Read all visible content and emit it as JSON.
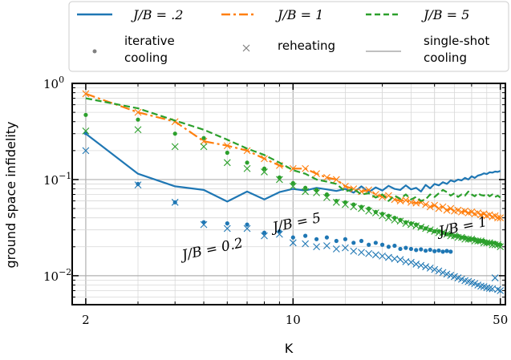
{
  "chart_data": {
    "type": "line",
    "xlabel": "K",
    "ylabel": "ground space infidelity",
    "x_scale": "log",
    "y_scale": "log",
    "xlim": [
      1.8,
      52
    ],
    "ylim": [
      0.005,
      1.0
    ],
    "grid": true,
    "x_ticks": [
      {
        "v": 2,
        "label": "2"
      },
      {
        "v": 10,
        "label": "10"
      },
      {
        "v": 50,
        "label": "50"
      }
    ],
    "y_ticks": [
      {
        "v": 1,
        "label": "10",
        "exp": "0"
      },
      {
        "v": 0.1,
        "label": "10",
        "exp": "−1"
      },
      {
        "v": 0.01,
        "label": "10",
        "exp": "−2"
      }
    ],
    "legend": {
      "position": "top",
      "entries": [
        {
          "label": "J/B = .2",
          "style": "solid",
          "color": "#1f77b4"
        },
        {
          "label": "J/B = 1",
          "style": "dashdot",
          "color": "#ff7f0e"
        },
        {
          "label": "J/B = 5",
          "style": "dashed",
          "color": "#2ca02c"
        },
        {
          "label": "iterative cooling",
          "line1": "iterative",
          "line2": "cooling",
          "style": "dot",
          "color": "#808080"
        },
        {
          "label": "reheating",
          "style": "x",
          "color": "#808080"
        },
        {
          "label": "single-shot cooling",
          "line1": "single-shot",
          "line2": "cooling",
          "style": "thin",
          "color": "#808080"
        }
      ]
    },
    "annotations": [
      {
        "text": "J/B = 5",
        "x": 13.5,
        "y": 0.048
      },
      {
        "text": "J/B = 0.2",
        "x": 4.6,
        "y": 0.0195
      },
      {
        "text": "J/B = 1",
        "x": 39,
        "y": 0.048
      }
    ],
    "series": [
      {
        "name": "J/B = .2",
        "color": "#1f77b4",
        "style": "solid",
        "single_shot": {
          "x": [
            2,
            3,
            4,
            5,
            6,
            7,
            8,
            9,
            10,
            11,
            12,
            13,
            14,
            15,
            16,
            17,
            18,
            19,
            20,
            21,
            22,
            23,
            24,
            25,
            26,
            27,
            28,
            29,
            30,
            31,
            32,
            33,
            34,
            35,
            36,
            37,
            38,
            39,
            40,
            41,
            42,
            43,
            44,
            45,
            46,
            47,
            48,
            49,
            50
          ],
          "y": [
            0.3,
            0.115,
            0.085,
            0.078,
            0.059,
            0.075,
            0.062,
            0.074,
            0.08,
            0.077,
            0.082,
            0.079,
            0.076,
            0.08,
            0.073,
            0.085,
            0.074,
            0.083,
            0.077,
            0.086,
            0.08,
            0.078,
            0.087,
            0.079,
            0.082,
            0.075,
            0.088,
            0.081,
            0.09,
            0.087,
            0.094,
            0.09,
            0.098,
            0.095,
            0.1,
            0.098,
            0.104,
            0.1,
            0.108,
            0.104,
            0.11,
            0.112,
            0.116,
            0.114,
            0.119,
            0.118,
            0.121,
            0.12,
            0.123
          ]
        },
        "iterative": {
          "x": [
            2,
            3,
            4,
            5,
            6,
            7,
            8,
            9,
            10,
            11,
            12,
            13,
            14,
            15,
            16,
            17,
            18,
            19,
            20,
            21,
            22,
            23,
            24,
            25,
            26,
            27,
            28,
            29,
            30,
            31,
            32,
            33,
            34
          ],
          "y": [
            0.305,
            0.09,
            0.058,
            0.036,
            0.035,
            0.034,
            0.028,
            0.029,
            0.025,
            0.026,
            0.024,
            0.025,
            0.023,
            0.024,
            0.022,
            0.023,
            0.021,
            0.022,
            0.021,
            0.02,
            0.0205,
            0.019,
            0.0195,
            0.019,
            0.0185,
            0.0188,
            0.0182,
            0.0186,
            0.018,
            0.0183,
            0.0178,
            0.0181,
            0.0178
          ]
        },
        "reheating": {
          "x": [
            2,
            3,
            4,
            5,
            6,
            7,
            8,
            9,
            10,
            11,
            12,
            13,
            14,
            15,
            16,
            17,
            18,
            19,
            20,
            21,
            22,
            23,
            24,
            25,
            26,
            27,
            28,
            29,
            30,
            31,
            32,
            33,
            34,
            35,
            36,
            37,
            38,
            39,
            40,
            41,
            42,
            43,
            44,
            45,
            46,
            47,
            48,
            49,
            50
          ],
          "y": [
            0.2,
            0.088,
            0.058,
            0.034,
            0.031,
            0.031,
            0.026,
            0.027,
            0.022,
            0.0215,
            0.02,
            0.0205,
            0.019,
            0.0195,
            0.018,
            0.0175,
            0.017,
            0.0165,
            0.016,
            0.0155,
            0.015,
            0.0147,
            0.014,
            0.0138,
            0.0132,
            0.0128,
            0.0124,
            0.012,
            0.0116,
            0.0112,
            0.0108,
            0.0104,
            0.0101,
            0.0098,
            0.0095,
            0.0092,
            0.0089,
            0.0087,
            0.0085,
            0.0083,
            0.008,
            0.0078,
            0.0077,
            0.0075,
            0.0074,
            0.0073,
            0.0095,
            0.0072,
            0.007
          ]
        }
      },
      {
        "name": "J/B = 1",
        "color": "#ff7f0e",
        "style": "dashdot",
        "single_shot": {
          "x": [
            2,
            3,
            4,
            5,
            6,
            7,
            8,
            9,
            10,
            11,
            12,
            13,
            14,
            15,
            16,
            17,
            18,
            19,
            20,
            21,
            22,
            23,
            24,
            25,
            26,
            27,
            28,
            29,
            30,
            31,
            32,
            33,
            34,
            35,
            36,
            37,
            38,
            39,
            40,
            41,
            42,
            43,
            44,
            45,
            46,
            47,
            48,
            49,
            50
          ],
          "y": [
            0.78,
            0.5,
            0.4,
            0.25,
            0.225,
            0.2,
            0.165,
            0.14,
            0.13,
            0.13,
            0.115,
            0.105,
            0.1,
            0.085,
            0.08,
            0.075,
            0.078,
            0.07,
            0.066,
            0.068,
            0.062,
            0.06,
            0.061,
            0.058,
            0.057,
            0.058,
            0.055,
            0.052,
            0.054,
            0.05,
            0.052,
            0.048,
            0.05,
            0.047,
            0.048,
            0.046,
            0.047,
            0.045,
            0.046,
            0.044,
            0.045,
            0.043,
            0.044,
            0.042,
            0.043,
            0.041,
            0.042,
            0.04,
            0.04
          ]
        },
        "reheating": {
          "x": [
            2,
            3,
            4,
            5,
            6,
            7,
            8,
            9,
            10,
            11,
            12,
            13,
            14,
            15,
            16,
            17,
            18,
            19,
            20,
            21,
            22,
            23,
            24,
            25,
            26,
            27,
            28,
            29,
            30,
            31,
            32,
            33,
            34,
            35,
            36,
            37,
            38,
            39,
            40,
            41,
            42,
            43,
            44,
            45,
            46,
            47,
            48,
            49,
            50
          ],
          "y": [
            0.78,
            0.5,
            0.4,
            0.25,
            0.225,
            0.2,
            0.165,
            0.14,
            0.13,
            0.13,
            0.115,
            0.105,
            0.1,
            0.085,
            0.08,
            0.075,
            0.078,
            0.07,
            0.066,
            0.068,
            0.062,
            0.06,
            0.061,
            0.058,
            0.057,
            0.058,
            0.055,
            0.052,
            0.054,
            0.05,
            0.052,
            0.048,
            0.05,
            0.047,
            0.048,
            0.046,
            0.047,
            0.045,
            0.046,
            0.044,
            0.045,
            0.043,
            0.044,
            0.042,
            0.043,
            0.041,
            0.042,
            0.04,
            0.04
          ]
        }
      },
      {
        "name": "J/B = 5",
        "color": "#2ca02c",
        "style": "dashed",
        "single_shot": {
          "x": [
            2,
            3,
            4,
            5,
            6,
            7,
            8,
            9,
            10,
            11,
            12,
            13,
            14,
            15,
            16,
            17,
            18,
            19,
            20,
            21,
            22,
            23,
            24,
            25,
            26,
            27,
            28,
            29,
            30,
            31,
            32,
            33,
            34,
            35,
            36,
            37,
            38,
            39,
            40,
            41,
            42,
            43,
            44,
            45,
            46,
            47,
            48,
            49,
            50
          ],
          "y": [
            0.7,
            0.55,
            0.41,
            0.33,
            0.26,
            0.21,
            0.18,
            0.15,
            0.125,
            0.115,
            0.1,
            0.095,
            0.09,
            0.075,
            0.08,
            0.07,
            0.072,
            0.065,
            0.07,
            0.06,
            0.068,
            0.063,
            0.07,
            0.062,
            0.066,
            0.06,
            0.062,
            0.07,
            0.066,
            0.072,
            0.078,
            0.074,
            0.068,
            0.072,
            0.066,
            0.07,
            0.068,
            0.075,
            0.07,
            0.067,
            0.072,
            0.069,
            0.068,
            0.071,
            0.067,
            0.07,
            0.066,
            0.068,
            0.065
          ]
        },
        "iterative": {
          "x": [
            2,
            3,
            4,
            5,
            6,
            7,
            8,
            9,
            10,
            11,
            12,
            13,
            14,
            15,
            16,
            17,
            18,
            19,
            20,
            21,
            22,
            23,
            24,
            25,
            26,
            27,
            28,
            29,
            30,
            31,
            32,
            33,
            34,
            35,
            36,
            37,
            38,
            39,
            40,
            41,
            42,
            43,
            44,
            45,
            46,
            47,
            48,
            49,
            50
          ],
          "y": [
            0.47,
            0.42,
            0.3,
            0.27,
            0.19,
            0.15,
            0.13,
            0.105,
            0.092,
            0.082,
            0.078,
            0.07,
            0.06,
            0.058,
            0.055,
            0.052,
            0.05,
            0.046,
            0.044,
            0.042,
            0.04,
            0.038,
            0.036,
            0.035,
            0.034,
            0.032,
            0.031,
            0.03,
            0.029,
            0.029,
            0.028,
            0.027,
            0.027,
            0.026,
            0.026,
            0.025,
            0.025,
            0.024,
            0.024,
            0.024,
            0.023,
            0.023,
            0.023,
            0.022,
            0.022,
            0.022,
            0.022,
            0.021,
            0.021
          ]
        },
        "reheating": {
          "x": [
            2,
            3,
            4,
            5,
            6,
            7,
            8,
            9,
            10,
            11,
            12,
            13,
            14,
            15,
            16,
            17,
            18,
            19,
            20,
            21,
            22,
            23,
            24,
            25,
            26,
            27,
            28,
            29,
            30,
            31,
            32,
            33,
            34,
            35,
            36,
            37,
            38,
            39,
            40,
            41,
            42,
            43,
            44,
            45,
            46,
            47,
            48,
            49,
            50
          ],
          "y": [
            0.32,
            0.33,
            0.22,
            0.22,
            0.15,
            0.13,
            0.12,
            0.1,
            0.085,
            0.075,
            0.073,
            0.065,
            0.058,
            0.055,
            0.052,
            0.05,
            0.047,
            0.045,
            0.042,
            0.04,
            0.038,
            0.037,
            0.035,
            0.034,
            0.033,
            0.032,
            0.031,
            0.03,
            0.029,
            0.028,
            0.028,
            0.027,
            0.026,
            0.026,
            0.025,
            0.025,
            0.024,
            0.024,
            0.024,
            0.023,
            0.023,
            0.023,
            0.022,
            0.022,
            0.022,
            0.021,
            0.021,
            0.021,
            0.02
          ]
        }
      }
    ]
  }
}
